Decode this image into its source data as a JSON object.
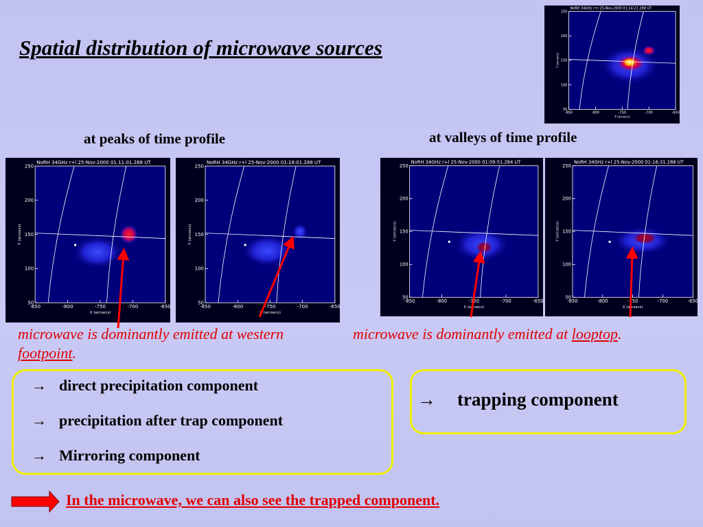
{
  "title": "Spatial distribution of microwave sources",
  "labels": {
    "peaks": "at peaks of time profile",
    "valleys": "at valleys of time profile"
  },
  "panels": [
    {
      "header": "NoRH 34GHz r+l 25-Nov-2000 01:14:21.288 UT"
    },
    {
      "header": "NoRH 34GHz r+l 25-Nov-2000 01:11:01.288 UT"
    },
    {
      "header": "NoRH 34GHz r+l 25-Nov-2000 01:18:01.288 UT"
    },
    {
      "header": "NoRH 34GHz r+l 25-Nov-2000 01:09:51.284 UT"
    },
    {
      "header": "NoRH 34GHz r+l 25-Nov-2000 01:16:31.288 UT"
    }
  ],
  "axes": {
    "x_label": "X (arcsecs)",
    "y_label": "Y (arcsecs)",
    "x_ticks": [
      -850,
      -800,
      -750,
      -700,
      -650
    ],
    "y_ticks": [
      50,
      100,
      150,
      200,
      250
    ]
  },
  "captions": {
    "left": {
      "text": "microwave is dominantly emitted at western ",
      "link": "footpoint",
      "end": "."
    },
    "right": {
      "text": "microwave is dominantly emitted at ",
      "link": "looptop",
      "end": "."
    }
  },
  "bullet": "→",
  "boxes": {
    "left": [
      "direct precipitation component",
      "precipitation after trap component",
      "Mirroring component"
    ],
    "right": [
      "trapping component"
    ]
  },
  "footer": "In the microwave, we can also see the trapped component."
}
